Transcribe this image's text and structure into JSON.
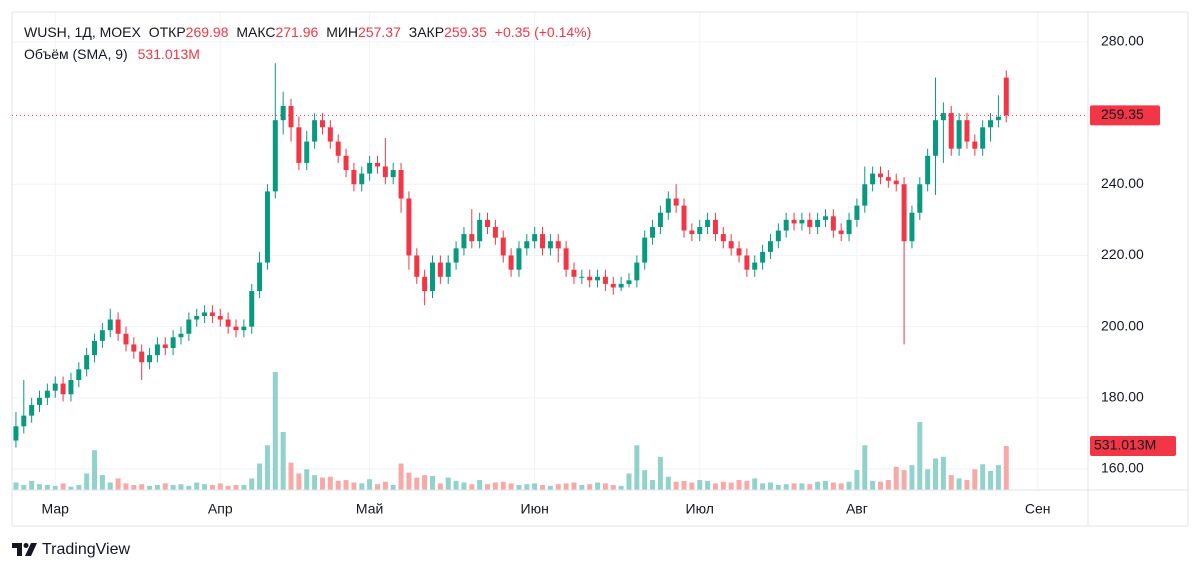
{
  "chart_data": {
    "type": "candlestick",
    "symbol": "WUSH, 1Д, MOEX",
    "open_label": "ОТКР",
    "high_label": "МАКС",
    "low_label": "МИН",
    "close_label": "ЗАКР",
    "change_label": "+0.35 (+0.14%)",
    "volume_title": "Объём (SMA, 9)",
    "volume_label": "531.013M",
    "up_color": "#089981",
    "down_color": "#f23645",
    "up_volume_color": "#92d2cc",
    "down_volume_color": "#f7a9a7",
    "grid": true,
    "xlim": [
      -0.5,
      136.4
    ],
    "xticks": [
      {
        "value": 5,
        "label": "Мар"
      },
      {
        "value": 26,
        "label": "Апр"
      },
      {
        "value": 45,
        "label": "Май"
      },
      {
        "value": 66,
        "label": "Июн"
      },
      {
        "value": 87,
        "label": "Июл"
      },
      {
        "value": 107,
        "label": "Авг"
      },
      {
        "value": 130,
        "label": "Сен"
      }
    ],
    "ylim": [
      154.1,
      288.4
    ],
    "yticks": [
      {
        "value": 160,
        "label": "160.00"
      },
      {
        "value": 180,
        "label": "180.00"
      },
      {
        "value": 200,
        "label": "200.00"
      },
      {
        "value": 220,
        "label": "220.00"
      },
      {
        "value": 240,
        "label": "240.00"
      },
      {
        "value": 260,
        "label": "260.00"
      },
      {
        "value": 280,
        "label": "280.00"
      }
    ],
    "volume_ylim": [
      0,
      5768
    ],
    "open": [
      168,
      172,
      175,
      178,
      180,
      182,
      184,
      181,
      185,
      188,
      192,
      196,
      199,
      202,
      198,
      195,
      193,
      190,
      192,
      195,
      194,
      197,
      198,
      202,
      203,
      204,
      203,
      202,
      200,
      199,
      200,
      210,
      218,
      238,
      258,
      262,
      256,
      246,
      252,
      258,
      256,
      252,
      248,
      244,
      240,
      243,
      246,
      245,
      242,
      244,
      236,
      220,
      214,
      210,
      218,
      214,
      218,
      222,
      226,
      224,
      230,
      228,
      225,
      220,
      216,
      222,
      224,
      226,
      222,
      224,
      222,
      216,
      214,
      214,
      213,
      214,
      212,
      211,
      212,
      213,
      218,
      225,
      228,
      232,
      236,
      234,
      227,
      226,
      228,
      230,
      226,
      224,
      222,
      220,
      216,
      218,
      221,
      224,
      227,
      230,
      229,
      230,
      228,
      230,
      231,
      227,
      226,
      230,
      234,
      240,
      243,
      242,
      241,
      240,
      224,
      232,
      240,
      248,
      258,
      260,
      250,
      258,
      252,
      250,
      256,
      258,
      269.98
    ],
    "high": [
      176,
      185,
      180,
      182,
      184,
      186,
      186,
      187,
      190,
      194,
      198,
      201,
      205,
      204,
      200,
      197,
      195,
      194,
      197,
      197,
      199,
      200,
      204,
      205,
      206,
      206,
      205,
      204,
      202,
      202,
      212,
      221,
      240,
      274,
      266,
      264,
      259,
      255,
      260,
      260,
      258,
      254,
      250,
      246,
      245,
      248,
      248,
      253,
      246,
      246,
      238,
      222,
      216,
      220,
      220,
      220,
      224,
      228,
      233,
      232,
      232,
      230,
      227,
      222,
      224,
      226,
      228,
      228,
      226,
      226,
      224,
      218,
      216,
      216,
      216,
      216,
      214,
      214,
      215,
      220,
      227,
      230,
      234,
      238,
      240,
      236,
      229,
      230,
      232,
      232,
      228,
      226,
      224,
      222,
      220,
      223,
      226,
      229,
      232,
      232,
      232,
      232,
      232,
      233,
      233,
      229,
      232,
      236,
      245,
      245,
      245,
      244,
      243,
      242,
      234,
      242,
      250,
      270,
      263,
      262,
      260,
      260,
      254,
      258,
      260,
      265,
      271.96
    ],
    "low": [
      166,
      170,
      173,
      176,
      178,
      180,
      179,
      179,
      183,
      186,
      190,
      194,
      197,
      196,
      193,
      191,
      185,
      188,
      190,
      192,
      192,
      195,
      196,
      200,
      201,
      201,
      200,
      198,
      197,
      197,
      198,
      208,
      216,
      236,
      254,
      252,
      244,
      244,
      250,
      254,
      250,
      246,
      242,
      238,
      238,
      241,
      243,
      240,
      240,
      232,
      216,
      212,
      206,
      208,
      212,
      212,
      216,
      220,
      222,
      222,
      226,
      223,
      218,
      214,
      214,
      220,
      222,
      220,
      220,
      218,
      214,
      212,
      212,
      211,
      211,
      210,
      209,
      210,
      211,
      211,
      216,
      223,
      226,
      230,
      232,
      225,
      224,
      224,
      226,
      224,
      222,
      220,
      218,
      214,
      214,
      216,
      219,
      222,
      225,
      227,
      227,
      226,
      226,
      228,
      225,
      224,
      224,
      228,
      232,
      238,
      240,
      239,
      238,
      195,
      222,
      230,
      238,
      237,
      246,
      248,
      248,
      250,
      248,
      248,
      252,
      256,
      257.37
    ],
    "close": [
      172,
      175,
      178,
      180,
      182,
      184,
      181,
      185,
      188,
      192,
      196,
      199,
      202,
      198,
      195,
      193,
      190,
      192,
      195,
      194,
      197,
      198,
      202,
      203,
      204,
      203,
      202,
      200,
      199,
      200,
      210,
      218,
      238,
      258,
      262,
      256,
      246,
      252,
      258,
      256,
      252,
      248,
      244,
      240,
      243,
      246,
      245,
      242,
      244,
      236,
      220,
      214,
      210,
      218,
      214,
      218,
      222,
      226,
      224,
      230,
      228,
      225,
      220,
      216,
      222,
      224,
      226,
      222,
      224,
      222,
      216,
      214,
      214,
      213,
      214,
      212,
      211,
      212,
      213,
      218,
      225,
      228,
      232,
      236,
      234,
      227,
      226,
      228,
      230,
      226,
      224,
      222,
      220,
      216,
      218,
      221,
      224,
      227,
      230,
      229,
      230,
      228,
      230,
      231,
      227,
      226,
      230,
      234,
      240,
      243,
      242,
      241,
      240,
      224,
      232,
      240,
      248,
      258,
      260,
      250,
      258,
      252,
      250,
      256,
      258,
      259,
      259.35
    ],
    "volume": [
      90,
      60,
      110,
      70,
      60,
      50,
      80,
      40,
      60,
      200,
      480,
      180,
      90,
      140,
      80,
      60,
      70,
      50,
      60,
      80,
      60,
      70,
      50,
      90,
      70,
      60,
      80,
      50,
      60,
      60,
      140,
      320,
      540,
      1424,
      700,
      330,
      200,
      250,
      180,
      150,
      160,
      110,
      120,
      90,
      80,
      130,
      70,
      100,
      60,
      320,
      210,
      150,
      180,
      170,
      80,
      150,
      110,
      90,
      70,
      120,
      70,
      90,
      100,
      80,
      60,
      70,
      80,
      60,
      50,
      70,
      80,
      90,
      60,
      70,
      90,
      80,
      60,
      50,
      200,
      540,
      240,
      120,
      400,
      160,
      100,
      110,
      90,
      120,
      110,
      80,
      100,
      90,
      120,
      110,
      140,
      80,
      90,
      60,
      70,
      80,
      80,
      70,
      100,
      110,
      90,
      80,
      100,
      240,
      540,
      110,
      100,
      120,
      280,
      240,
      300,
      820,
      250,
      380,
      400,
      180,
      140,
      120,
      250,
      310,
      230,
      300,
      531.013
    ]
  },
  "footer": {
    "brand": "TradingView"
  }
}
